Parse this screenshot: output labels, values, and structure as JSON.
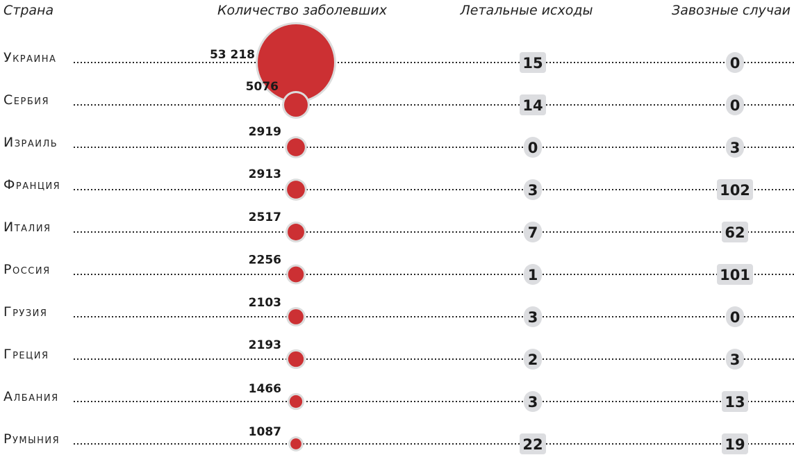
{
  "chart_data": {
    "type": "table",
    "columns": [
      "Страна",
      "Количество заболевших",
      "Летальные исходы",
      "Завозные случаи"
    ],
    "rows": [
      {
        "country": "Украина",
        "cases": 53218,
        "cases_label": "53 218",
        "deaths": 15,
        "imported": 0
      },
      {
        "country": "Сербия",
        "cases": 5076,
        "cases_label": "5076",
        "deaths": 14,
        "imported": 0
      },
      {
        "country": "Израиль",
        "cases": 2919,
        "cases_label": "2919",
        "deaths": 0,
        "imported": 3
      },
      {
        "country": "Франция",
        "cases": 2913,
        "cases_label": "2913",
        "deaths": 3,
        "imported": 102
      },
      {
        "country": "Италия",
        "cases": 2517,
        "cases_label": "2517",
        "deaths": 7,
        "imported": 62
      },
      {
        "country": "Россия",
        "cases": 2256,
        "cases_label": "2256",
        "deaths": 1,
        "imported": 101
      },
      {
        "country": "Грузия",
        "cases": 2103,
        "cases_label": "2103",
        "deaths": 3,
        "imported": 0
      },
      {
        "country": "Греция",
        "cases": 2193,
        "cases_label": "2193",
        "deaths": 2,
        "imported": 3
      },
      {
        "country": "Албания",
        "cases": 1466,
        "cases_label": "1466",
        "deaths": 3,
        "imported": 13
      },
      {
        "country": "Румыния",
        "cases": 1087,
        "cases_label": "1087",
        "deaths": 22,
        "imported": 19
      }
    ],
    "bubble_encoding": "area proportional to cases",
    "colors": {
      "bubble": "#cc3033",
      "bubble_outline": "#dcdcdc",
      "badge": "#dcdde0",
      "text": "#1a1a1a"
    }
  }
}
